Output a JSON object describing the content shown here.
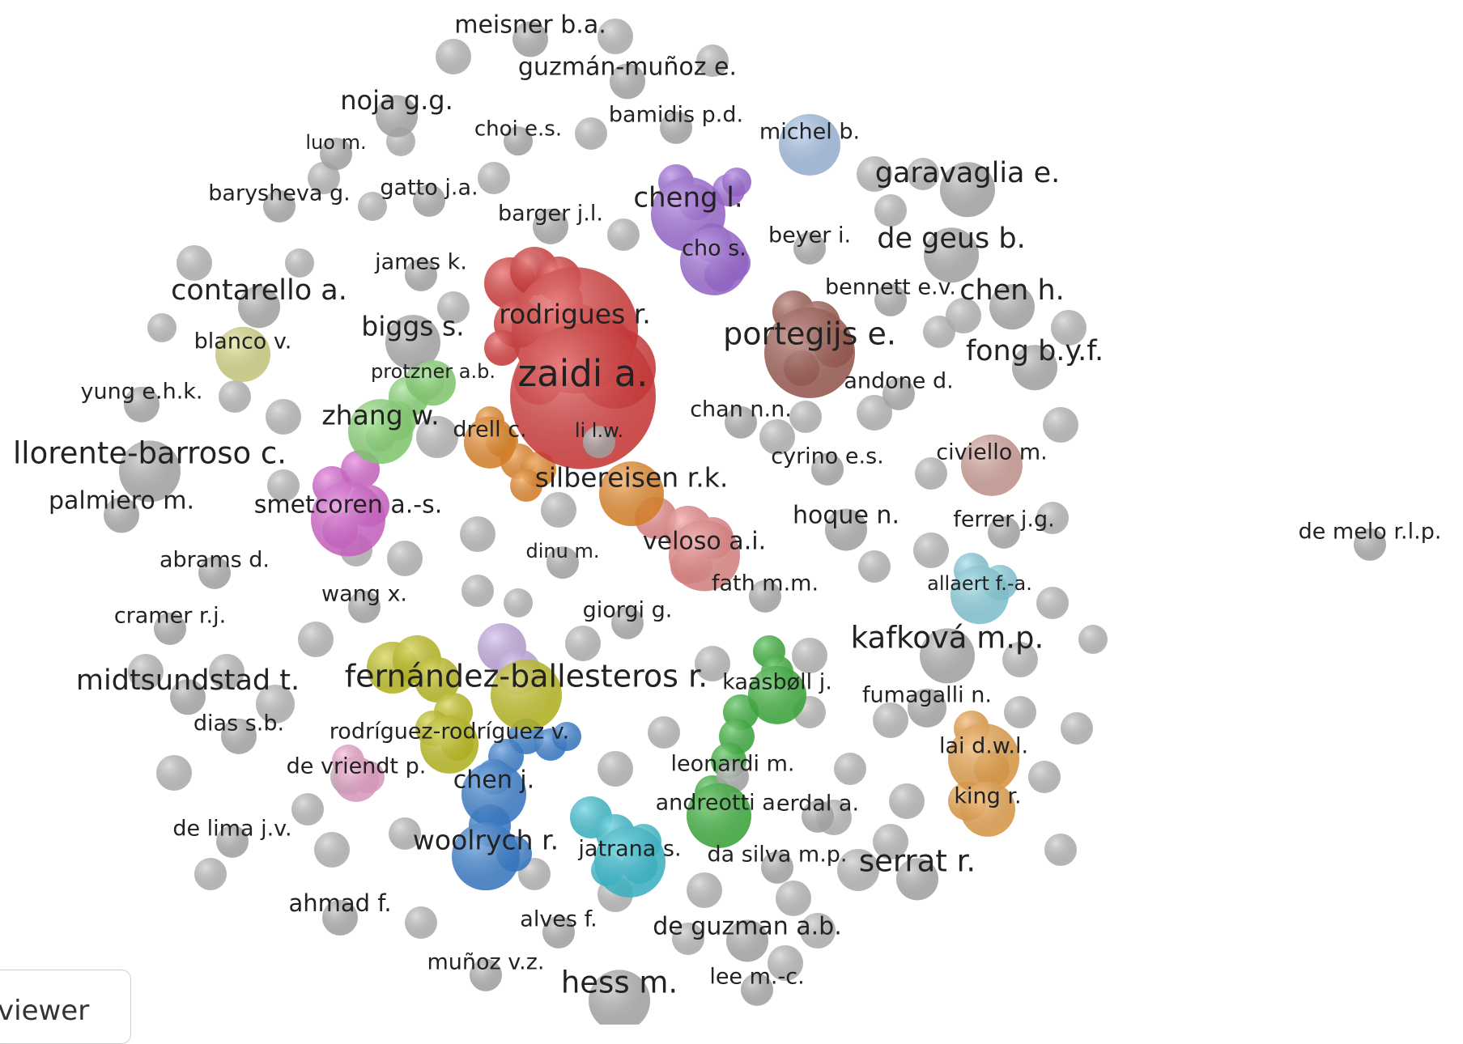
{
  "labels": [
    {
      "text": "meisner b.a.",
      "color": "#b5b5b5"
    },
    {
      "text": "guzmán-muñoz e.",
      "color": "#b5b5b5"
    },
    {
      "text": "noja g.g.",
      "color": "#b5b5b5"
    },
    {
      "text": "bamidis p.d.",
      "color": "#b5b5b5"
    },
    {
      "text": "choi e.s.",
      "color": "#b5b5b5"
    },
    {
      "text": "luo m.",
      "color": "#b5b5b5"
    },
    {
      "text": "michel b.",
      "color": "#a9c6ec"
    },
    {
      "text": "garavaglia e.",
      "color": "#b5b5b5"
    },
    {
      "text": "barysheva g.",
      "color": "#b5b5b5"
    },
    {
      "text": "gatto j.a.",
      "color": "#b5b5b5"
    },
    {
      "text": "barger j.l.",
      "color": "#b5b5b5"
    },
    {
      "text": "cheng l.",
      "color": "#a46fe0"
    },
    {
      "text": "beyer i.",
      "color": "#b5b5b5"
    },
    {
      "text": "de geus b.",
      "color": "#b5b5b5"
    },
    {
      "text": "cho s.",
      "color": "#a46fe0"
    },
    {
      "text": "james k.",
      "color": "#b5b5b5"
    },
    {
      "text": "contarello a.",
      "color": "#b5b5b5"
    },
    {
      "text": "bennett e.v.",
      "color": "#b5b5b5"
    },
    {
      "text": "chen h.",
      "color": "#b5b5b5"
    },
    {
      "text": "rodrigues r.",
      "color": "#e23a3a"
    },
    {
      "text": "biggs s.",
      "color": "#b5b5b5"
    },
    {
      "text": "portegijs e.",
      "color": "#a45e55"
    },
    {
      "text": "blanco v.",
      "color": "#dede8a"
    },
    {
      "text": "fong b.y.f.",
      "color": "#b5b5b5"
    },
    {
      "text": "protzner a.b.",
      "color": "#8fe07a"
    },
    {
      "text": "zaidi a.",
      "color": "#e23a3a"
    },
    {
      "text": "andone d.",
      "color": "#b5b5b5"
    },
    {
      "text": "yung e.h.k.",
      "color": "#b5b5b5"
    },
    {
      "text": "chan n.n.",
      "color": "#b5b5b5"
    },
    {
      "text": "zhang w.",
      "color": "#8fe07a"
    },
    {
      "text": "drell c.",
      "color": "#f08d28"
    },
    {
      "text": "li l.w.",
      "color": "#b5b5b5"
    },
    {
      "text": "llorente-barroso c.",
      "color": "#b5b5b5"
    },
    {
      "text": "civiello m.",
      "color": "#d8a39b"
    },
    {
      "text": "cyrino e.s.",
      "color": "#b5b5b5"
    },
    {
      "text": "silbereisen r.k.",
      "color": "#f08d28"
    },
    {
      "text": "palmiero m.",
      "color": "#b5b5b5"
    },
    {
      "text": "smetcoren a.-s.",
      "color": "#e06ad8"
    },
    {
      "text": "hoque n.",
      "color": "#b5b5b5"
    },
    {
      "text": "ferrer j.g.",
      "color": "#b5b5b5"
    },
    {
      "text": "veloso a.i.",
      "color": "#f28d8d"
    },
    {
      "text": "dinu m.",
      "color": "#b5b5b5"
    },
    {
      "text": "de melo r.l.p.",
      "color": "#b5b5b5"
    },
    {
      "text": "abrams d.",
      "color": "#b5b5b5"
    },
    {
      "text": "allaert f.-a.",
      "color": "#8dd8e8"
    },
    {
      "text": "fath m.m.",
      "color": "#b5b5b5"
    },
    {
      "text": "wang x.",
      "color": "#b5b5b5"
    },
    {
      "text": "giorgi g.",
      "color": "#b5b5b5"
    },
    {
      "text": "cramer r.j.",
      "color": "#b5b5b5"
    },
    {
      "text": "kafková m.p.",
      "color": "#b5b5b5"
    },
    {
      "text": "midtsundstad t.",
      "color": "#b5b5b5"
    },
    {
      "text": "fernández-ballesteros r.",
      "color": "#c8c81e"
    },
    {
      "text": "kaasbøll j.",
      "color": "#3cb83c"
    },
    {
      "text": "fumagalli n.",
      "color": "#b5b5b5"
    },
    {
      "text": "dias s.b.",
      "color": "#b5b5b5"
    },
    {
      "text": "rodríguez-rodríguez v.",
      "color": "#c8c81e"
    },
    {
      "text": "lai d.w.l.",
      "color": "#f5a84a"
    },
    {
      "text": "leonardi m.",
      "color": "#b5b5b5"
    },
    {
      "text": "de vriendt p.",
      "color": "#f5acd4"
    },
    {
      "text": "chen j.",
      "color": "#3a84d8"
    },
    {
      "text": "andreotti a.",
      "color": "#3cb83c"
    },
    {
      "text": "erdal a.",
      "color": "#b5b5b5"
    },
    {
      "text": "king r.",
      "color": "#f5a84a"
    },
    {
      "text": "de lima j.v.",
      "color": "#b5b5b5"
    },
    {
      "text": "woolrych r.",
      "color": "#3a84d8"
    },
    {
      "text": "jatrana s.",
      "color": "#3ec8dc"
    },
    {
      "text": "da silva m.p.",
      "color": "#b5b5b5"
    },
    {
      "text": "serrat r.",
      "color": "#b5b5b5"
    },
    {
      "text": "ahmad f.",
      "color": "#b5b5b5"
    },
    {
      "text": "alves f.",
      "color": "#b5b5b5"
    },
    {
      "text": "de guzman a.b.",
      "color": "#b5b5b5"
    },
    {
      "text": "muñoz v.z.",
      "color": "#b5b5b5"
    },
    {
      "text": "hess m.",
      "color": "#b5b5b5"
    },
    {
      "text": "lee m.-c.",
      "color": "#b5b5b5"
    }
  ],
  "viewer_tab": {
    "label": "viewer"
  }
}
